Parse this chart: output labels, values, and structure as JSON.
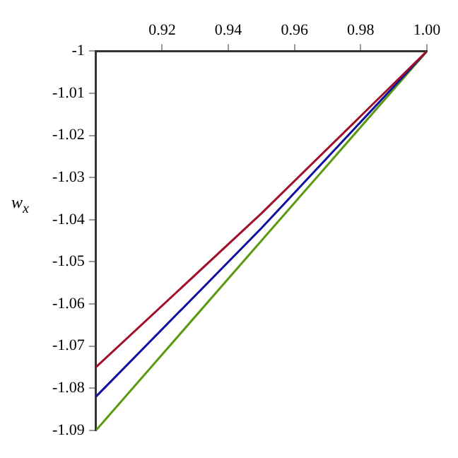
{
  "chart_data": {
    "type": "line",
    "ylabel": "w$_{x}$",
    "xlim": [
      0.9,
      1.0
    ],
    "xticks": [
      0.92,
      0.94,
      0.96,
      0.98,
      {
        "value": 1.0,
        "label": "1.00"
      }
    ],
    "ylim": [
      -1.09,
      -1
    ],
    "yticks": [
      -1.09,
      -1.08,
      -1.07,
      -1.06,
      -1.05,
      -1.04,
      -1.03,
      -1.02,
      -1.01,
      -1
    ],
    "grid": false,
    "legend": false,
    "marker": "none",
    "line_style": "solid",
    "series": [
      {
        "color": "#a0102a",
        "x": [
          0.9,
          0.95,
          1.0
        ],
        "values": [
          -1.075,
          -1.0385,
          -1
        ]
      },
      {
        "color": "#1010a0",
        "x": [
          0.9,
          0.95,
          1.0
        ],
        "values": [
          -1.082,
          -1.042,
          -1
        ]
      },
      {
        "color": "#5a9a10",
        "x": [
          0.9,
          0.95,
          1.0
        ],
        "values": [
          -1.09,
          -1.045,
          -1
        ]
      }
    ]
  }
}
